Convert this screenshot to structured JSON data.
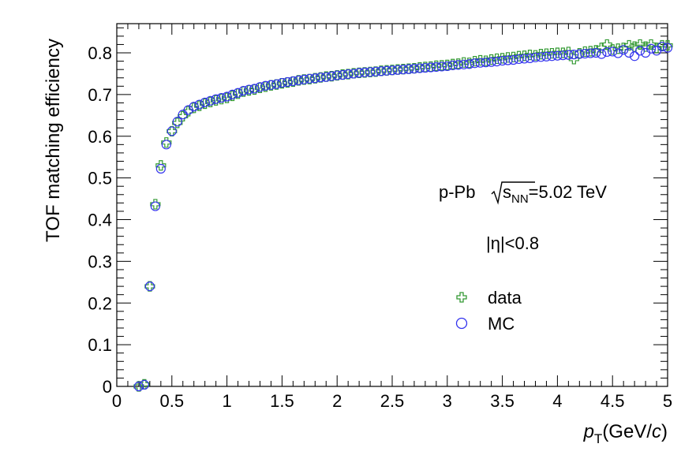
{
  "chart_data": {
    "type": "scatter",
    "xlabel_italic": "p",
    "xlabel_sub": "T",
    "xlabel_pre_unit": "(GeV/",
    "xlabel_unit_italic": "c",
    "xlabel_close": ")",
    "ylabel": "TOF matching efficiency",
    "xlim": [
      0,
      5
    ],
    "ylim": [
      0,
      0.87
    ],
    "x_ticks": [
      "0",
      "0.5",
      "1",
      "1.5",
      "2",
      "2.5",
      "3",
      "3.5",
      "4",
      "4.5",
      "5"
    ],
    "y_ticks": [
      "0",
      "0.1",
      "0.2",
      "0.3",
      "0.4",
      "0.5",
      "0.6",
      "0.7",
      "0.8"
    ],
    "grid": false,
    "legend_position": "center-right",
    "annotations": {
      "system_prefix": "p-Pb ",
      "system_sqrt_s": "s",
      "system_sqrt_sub": "NN",
      "system_suffix": "=5.02 TeV",
      "eta_cut": "|η|<0.8"
    },
    "series": [
      {
        "name": "data",
        "marker": "open-cross",
        "color": "#339933",
        "x": [
          0.2,
          0.25,
          0.3,
          0.35,
          0.4,
          0.45,
          0.5,
          0.55,
          0.6,
          0.65,
          0.7,
          0.75,
          0.8,
          0.85,
          0.9,
          0.95,
          1.0,
          1.05,
          1.1,
          1.15,
          1.2,
          1.25,
          1.3,
          1.35,
          1.4,
          1.45,
          1.5,
          1.55,
          1.6,
          1.65,
          1.7,
          1.75,
          1.8,
          1.85,
          1.9,
          1.95,
          2.0,
          2.05,
          2.1,
          2.15,
          2.2,
          2.25,
          2.3,
          2.35,
          2.4,
          2.45,
          2.5,
          2.55,
          2.6,
          2.65,
          2.7,
          2.75,
          2.8,
          2.85,
          2.9,
          2.95,
          3.0,
          3.05,
          3.1,
          3.15,
          3.2,
          3.25,
          3.3,
          3.35,
          3.4,
          3.45,
          3.5,
          3.55,
          3.6,
          3.65,
          3.7,
          3.75,
          3.8,
          3.85,
          3.9,
          3.95,
          4.0,
          4.05,
          4.1,
          4.15,
          4.2,
          4.25,
          4.3,
          4.35,
          4.4,
          4.45,
          4.5,
          4.55,
          4.6,
          4.65,
          4.7,
          4.75,
          4.8,
          4.85,
          4.9,
          4.95,
          5.0
        ],
        "y": [
          0.0,
          0.005,
          0.24,
          0.437,
          0.53,
          0.585,
          0.612,
          0.632,
          0.648,
          0.66,
          0.668,
          0.673,
          0.678,
          0.682,
          0.686,
          0.689,
          0.692,
          0.697,
          0.702,
          0.707,
          0.71,
          0.712,
          0.716,
          0.719,
          0.722,
          0.724,
          0.727,
          0.729,
          0.731,
          0.734,
          0.736,
          0.737,
          0.739,
          0.741,
          0.743,
          0.744,
          0.746,
          0.748,
          0.749,
          0.751,
          0.752,
          0.753,
          0.754,
          0.755,
          0.757,
          0.758,
          0.759,
          0.76,
          0.761,
          0.762,
          0.763,
          0.765,
          0.766,
          0.767,
          0.769,
          0.77,
          0.771,
          0.773,
          0.774,
          0.777,
          0.776,
          0.78,
          0.782,
          0.781,
          0.784,
          0.786,
          0.787,
          0.789,
          0.79,
          0.792,
          0.793,
          0.795,
          0.794,
          0.797,
          0.798,
          0.799,
          0.8,
          0.8,
          0.802,
          0.785,
          0.799,
          0.803,
          0.804,
          0.806,
          0.812,
          0.82,
          0.808,
          0.81,
          0.812,
          0.818,
          0.815,
          0.82,
          0.815,
          0.82,
          0.812,
          0.818,
          0.818
        ]
      },
      {
        "name": "MC",
        "marker": "open-circle",
        "color": "#3333ee",
        "x": [
          0.2,
          0.25,
          0.3,
          0.35,
          0.4,
          0.45,
          0.5,
          0.55,
          0.6,
          0.65,
          0.7,
          0.75,
          0.8,
          0.85,
          0.9,
          0.95,
          1.0,
          1.05,
          1.1,
          1.15,
          1.2,
          1.25,
          1.3,
          1.35,
          1.4,
          1.45,
          1.5,
          1.55,
          1.6,
          1.65,
          1.7,
          1.75,
          1.8,
          1.85,
          1.9,
          1.95,
          2.0,
          2.05,
          2.1,
          2.15,
          2.2,
          2.25,
          2.3,
          2.35,
          2.4,
          2.45,
          2.5,
          2.55,
          2.6,
          2.65,
          2.7,
          2.75,
          2.8,
          2.85,
          2.9,
          2.95,
          3.0,
          3.05,
          3.1,
          3.15,
          3.2,
          3.25,
          3.3,
          3.35,
          3.4,
          3.45,
          3.5,
          3.55,
          3.6,
          3.65,
          3.7,
          3.75,
          3.8,
          3.85,
          3.9,
          3.95,
          4.0,
          4.05,
          4.1,
          4.15,
          4.2,
          4.25,
          4.3,
          4.35,
          4.4,
          4.45,
          4.5,
          4.55,
          4.6,
          4.65,
          4.7,
          4.75,
          4.8,
          4.85,
          4.9,
          4.95,
          5.0
        ],
        "y": [
          0.0,
          0.004,
          0.24,
          0.432,
          0.522,
          0.58,
          0.612,
          0.635,
          0.652,
          0.663,
          0.671,
          0.676,
          0.681,
          0.685,
          0.689,
          0.692,
          0.695,
          0.7,
          0.704,
          0.709,
          0.712,
          0.714,
          0.718,
          0.721,
          0.723,
          0.725,
          0.728,
          0.73,
          0.732,
          0.734,
          0.736,
          0.738,
          0.739,
          0.741,
          0.742,
          0.744,
          0.746,
          0.747,
          0.749,
          0.75,
          0.752,
          0.753,
          0.754,
          0.755,
          0.756,
          0.757,
          0.758,
          0.759,
          0.76,
          0.761,
          0.762,
          0.763,
          0.764,
          0.765,
          0.766,
          0.767,
          0.768,
          0.77,
          0.771,
          0.772,
          0.773,
          0.775,
          0.776,
          0.777,
          0.778,
          0.779,
          0.781,
          0.782,
          0.783,
          0.785,
          0.786,
          0.787,
          0.789,
          0.79,
          0.791,
          0.792,
          0.793,
          0.794,
          0.795,
          0.796,
          0.797,
          0.798,
          0.799,
          0.8,
          0.797,
          0.802,
          0.803,
          0.799,
          0.807,
          0.8,
          0.792,
          0.805,
          0.8,
          0.81,
          0.805,
          0.815,
          0.812
        ]
      }
    ]
  }
}
